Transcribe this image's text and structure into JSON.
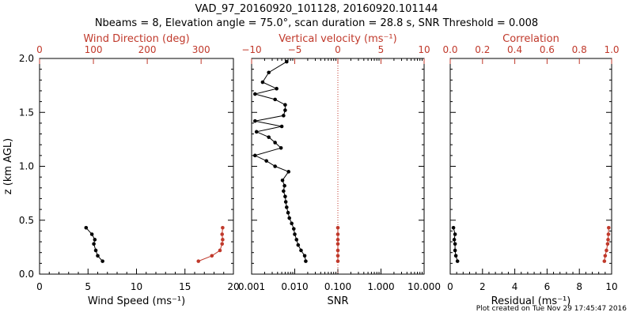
{
  "title": "VAD_97_20160920_101128, 20160920.101144",
  "subtitle": "Nbeams = 8, Elevation angle = 75.0°, scan duration = 28.8 s, SNR Threshold = 0.008",
  "footer": "Plot created on Tue Nov 29 17:45:47 2016",
  "colors": {
    "primary": "#000000",
    "secondary": "#c0392b"
  },
  "chart_data": [
    {
      "type": "line",
      "panel": "left",
      "ylabel": "z (km AGL)",
      "ylim": [
        0,
        2.0
      ],
      "yticks": [
        "0.0",
        "0.5",
        "1.0",
        "1.5",
        "2.0"
      ],
      "xlabel": "Wind Speed (ms⁻¹)",
      "xlim": [
        0,
        20
      ],
      "xticks": [
        "0",
        "5",
        "10",
        "15",
        "20"
      ],
      "top_label": "Wind Direction (deg)",
      "top_xlim": [
        0,
        360
      ],
      "top_xticks": [
        "0",
        "100",
        "200",
        "300"
      ],
      "series": [
        {
          "axis": "bottom",
          "color": "#000000",
          "x": [
            6.5,
            6.0,
            5.8,
            5.6,
            5.7,
            5.4,
            4.8
          ],
          "y": [
            0.12,
            0.17,
            0.22,
            0.28,
            0.32,
            0.37,
            0.43
          ]
        },
        {
          "axis": "top",
          "color": "#c0392b",
          "x": [
            295,
            320,
            335,
            339,
            340,
            339,
            340
          ],
          "y": [
            0.12,
            0.17,
            0.22,
            0.28,
            0.32,
            0.37,
            0.43
          ]
        }
      ]
    },
    {
      "type": "line",
      "panel": "middle",
      "xlabel": "SNR",
      "xscale": "log",
      "xlim": [
        0.001,
        10
      ],
      "xticks": [
        "0.001",
        "0.010",
        "0.100",
        "1.000",
        "10.000"
      ],
      "top_label": "Vertical velocity (ms⁻¹)",
      "top_xlim": [
        -10,
        10
      ],
      "top_xticks": [
        "−10",
        "−5",
        "0",
        "5",
        "10"
      ],
      "zero_line": 0,
      "series": [
        {
          "axis": "bottom",
          "color": "#000000",
          "x": [
            0.018,
            0.017,
            0.014,
            0.012,
            0.011,
            0.01,
            0.0095,
            0.0085,
            0.0075,
            0.007,
            0.0065,
            0.0062,
            0.006,
            0.0055,
            0.0058,
            0.0052,
            0.0072,
            0.0035,
            0.0022,
            0.0012,
            0.0048,
            0.0035,
            0.0025,
            0.0013,
            0.005,
            0.0012,
            0.0055,
            0.006,
            0.006,
            0.0035,
            0.0012,
            0.0038,
            0.0018,
            0.0025,
            0.0065
          ],
          "y": [
            0.12,
            0.17,
            0.22,
            0.27,
            0.32,
            0.37,
            0.42,
            0.47,
            0.52,
            0.57,
            0.62,
            0.67,
            0.72,
            0.77,
            0.82,
            0.87,
            0.95,
            1.0,
            1.05,
            1.1,
            1.17,
            1.22,
            1.27,
            1.32,
            1.37,
            1.42,
            1.47,
            1.52,
            1.57,
            1.62,
            1.67,
            1.72,
            1.78,
            1.87,
            1.97
          ]
        },
        {
          "axis": "top",
          "color": "#c0392b",
          "x": [
            0,
            0,
            0,
            0,
            0,
            0,
            0
          ],
          "y": [
            0.12,
            0.17,
            0.22,
            0.28,
            0.32,
            0.37,
            0.43
          ]
        }
      ]
    },
    {
      "type": "line",
      "panel": "right",
      "xlabel": "Residual (ms⁻¹)",
      "xlim": [
        0,
        10
      ],
      "xticks": [
        "0",
        "2",
        "4",
        "6",
        "8",
        "10"
      ],
      "top_label": "Correlation",
      "top_xlim": [
        0,
        1.0
      ],
      "top_xticks": [
        "0.0",
        "0.2",
        "0.4",
        "0.6",
        "0.8",
        "1.0"
      ],
      "series": [
        {
          "axis": "bottom",
          "color": "#000000",
          "x": [
            0.45,
            0.35,
            0.3,
            0.3,
            0.25,
            0.3,
            0.2
          ],
          "y": [
            0.12,
            0.17,
            0.22,
            0.28,
            0.32,
            0.37,
            0.43
          ]
        },
        {
          "axis": "top",
          "color": "#c0392b",
          "x": [
            0.955,
            0.96,
            0.968,
            0.975,
            0.978,
            0.98,
            0.982
          ],
          "y": [
            0.12,
            0.17,
            0.22,
            0.28,
            0.32,
            0.37,
            0.43
          ]
        }
      ]
    }
  ]
}
